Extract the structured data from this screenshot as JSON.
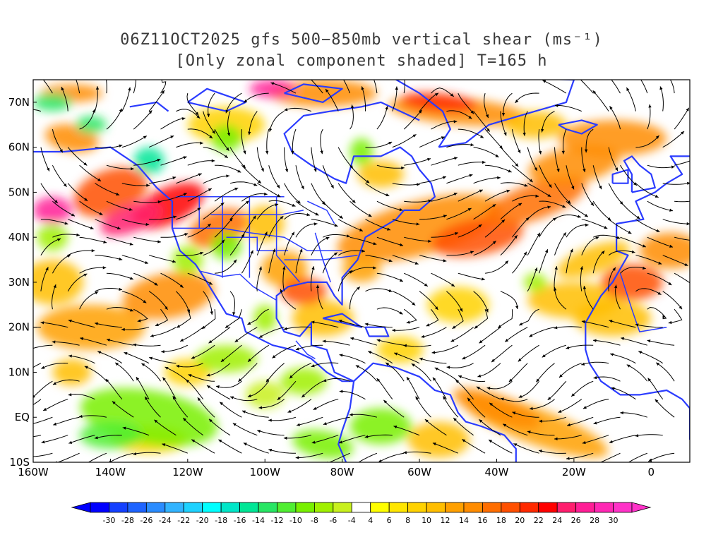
{
  "title": {
    "line1": "06Z11OCT2025 gfs 500−850mb vertical shear (ms⁻¹)",
    "line2": "[Only zonal component shaded] T=165 h"
  },
  "map": {
    "lon_range": [
      -160,
      10
    ],
    "lat_range": [
      -10,
      75
    ],
    "lat_ticks": [
      {
        "value": 70,
        "label": "70N"
      },
      {
        "value": 60,
        "label": "60N"
      },
      {
        "value": 50,
        "label": "50N"
      },
      {
        "value": 40,
        "label": "40N"
      },
      {
        "value": 30,
        "label": "30N"
      },
      {
        "value": 20,
        "label": "20N"
      },
      {
        "value": 10,
        "label": "10N"
      },
      {
        "value": 0,
        "label": "EQ"
      },
      {
        "value": -10,
        "label": "10S"
      }
    ],
    "lon_ticks": [
      {
        "value": -160,
        "label": "160W"
      },
      {
        "value": -140,
        "label": "140W"
      },
      {
        "value": -120,
        "label": "120W"
      },
      {
        "value": -100,
        "label": "100W"
      },
      {
        "value": -80,
        "label": "80W"
      },
      {
        "value": -60,
        "label": "60W"
      },
      {
        "value": -40,
        "label": "40W"
      },
      {
        "value": -20,
        "label": "20W"
      },
      {
        "value": 0,
        "label": "0"
      }
    ],
    "coastline_color": "#2b3cff",
    "streamline_color": "#000000"
  },
  "colorbar": {
    "labels": [
      "-30",
      "-28",
      "-26",
      "-24",
      "-22",
      "-20",
      "-18",
      "-16",
      "-14",
      "-12",
      "-10",
      "-8",
      "-6",
      "-4",
      "4",
      "6",
      "8",
      "10",
      "12",
      "14",
      "16",
      "18",
      "20",
      "22",
      "24",
      "26",
      "28",
      "30"
    ],
    "colors": [
      "#0000ff",
      "#1440ff",
      "#1e64ff",
      "#2a8cff",
      "#32b4ff",
      "#1ed2ff",
      "#00ffff",
      "#00e6c8",
      "#00e696",
      "#28e664",
      "#50ee32",
      "#78f000",
      "#a0f000",
      "#c8f01e",
      "#ffffff",
      "#ffff00",
      "#ffe600",
      "#ffd200",
      "#ffbe00",
      "#ffa000",
      "#ff8c00",
      "#ff6e00",
      "#ff5000",
      "#ff2a00",
      "#ff0000",
      "#ff1e6e",
      "#ff1e96",
      "#ff28b4",
      "#ff32c8"
    ],
    "end_left_color": "#0000ff",
    "end_right_color": "#ff32c8"
  }
}
